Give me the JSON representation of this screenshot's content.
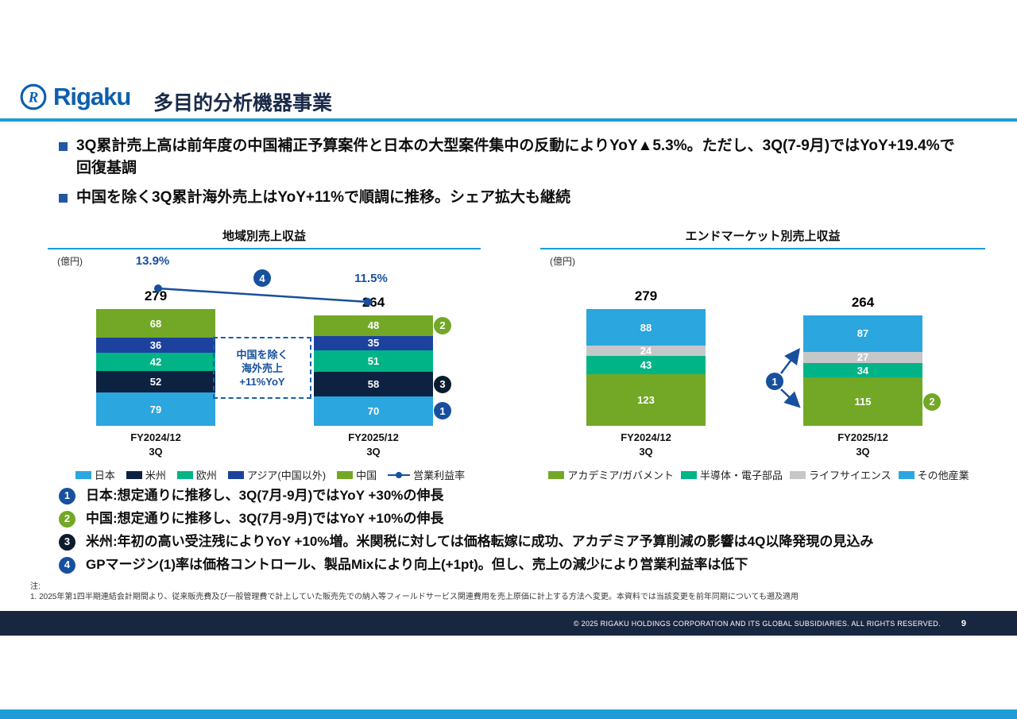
{
  "header": {
    "logo_text": "Rigaku",
    "title": "多目的分析機器事業"
  },
  "bullets": [
    "3Q累計売上高は前年度の中国補正予算案件と日本の大型案件集中の反動によりYoY▲5.3%。ただし、3Q(7-9月)ではYoY+19.4%で回復基調",
    "中国を除く3Q累計海外売上はYoY+11%で順調に推移。シェア拡大も継続"
  ],
  "chart_data": [
    {
      "type": "bar",
      "title": "地域別売上収益",
      "unit_label": "(億円)",
      "stacked": true,
      "categories": [
        "FY2024/12\n3Q",
        "FY2025/12\n3Q"
      ],
      "totals": [
        279,
        264
      ],
      "series": [
        {
          "name": "日本",
          "color": "#2BA6DF",
          "values": [
            79,
            70
          ]
        },
        {
          "name": "米州",
          "color": "#0D2240",
          "values": [
            52,
            58
          ]
        },
        {
          "name": "欧州",
          "color": "#00B488",
          "values": [
            42,
            51
          ]
        },
        {
          "name": "アジア(中国以外)",
          "color": "#1C429E",
          "values": [
            36,
            35
          ]
        },
        {
          "name": "中国",
          "color": "#72A826",
          "values": [
            68,
            48
          ]
        }
      ],
      "line_series": {
        "name": "営業利益率",
        "values_pct": [
          "13.9%",
          "11.5%"
        ],
        "badge_num": "4",
        "color": "#17509E"
      },
      "annotation": "中国を除く\n海外売上\n+11%YoY",
      "segment_badges": [
        {
          "bar": 1,
          "series": "中国",
          "num": "2",
          "color": "#72A826"
        },
        {
          "bar": 1,
          "series": "米州",
          "num": "3",
          "color": "#0D1B2E"
        },
        {
          "bar": 1,
          "series": "日本",
          "num": "1",
          "color": "#17509E"
        }
      ]
    },
    {
      "type": "bar",
      "title": "エンドマーケット別売上収益",
      "unit_label": "(億円)",
      "stacked": true,
      "categories": [
        "FY2024/12\n3Q",
        "FY2025/12\n3Q"
      ],
      "totals": [
        279,
        264
      ],
      "series": [
        {
          "name": "アカデミア/ガバメント",
          "color": "#72A826",
          "values": [
            123,
            115
          ]
        },
        {
          "name": "半導体・電子部品",
          "color": "#00B488",
          "values": [
            43,
            34
          ]
        },
        {
          "name": "ライフサイエンス",
          "color": "#C6C7C8",
          "values": [
            24,
            27
          ]
        },
        {
          "name": "その他産業",
          "color": "#2BA6DF",
          "values": [
            88,
            87
          ]
        }
      ],
      "callout_badge_num": "1",
      "segment_badges": [
        {
          "bar": 1,
          "series": "アカデミア/ガバメント",
          "num": "2",
          "color": "#72A826"
        }
      ]
    }
  ],
  "notes": [
    {
      "num": "1",
      "color": "#17509E",
      "text": "日本:想定通りに推移し、3Q(7月-9月)ではYoY +30%の伸長"
    },
    {
      "num": "2",
      "color": "#72A826",
      "text": "中国:想定通りに推移し、3Q(7月-9月)ではYoY +10%の伸長"
    },
    {
      "num": "3",
      "color": "#0D1B2E",
      "text": "米州:年初の高い受注残によりYoY +10%増。米関税に対しては価格転嫁に成功、アカデミア予算削減の影響は4Q以降発現の見込み"
    },
    {
      "num": "4",
      "color": "#17509E",
      "text": "GPマージン(1)率は価格コントロール、製品Mixにより向上(+1pt)。但し、売上の減少により営業利益率は低下"
    }
  ],
  "footnote": {
    "label": "注:",
    "text": "1. 2025年第1四半期連結会計期間より、従来販売費及び一般管理費で計上していた販売先での納入等フィールドサービス関連費用を売上原価に計上する方法へ変更。本資料では当該変更を前年同期についても遡及適用"
  },
  "footer": {
    "copyright": "© 2025 RIGAKU HOLDINGS CORPORATION AND ITS GLOBAL SUBSIDIARIES. ALL RIGHTS RESERVED.",
    "page": "9"
  }
}
